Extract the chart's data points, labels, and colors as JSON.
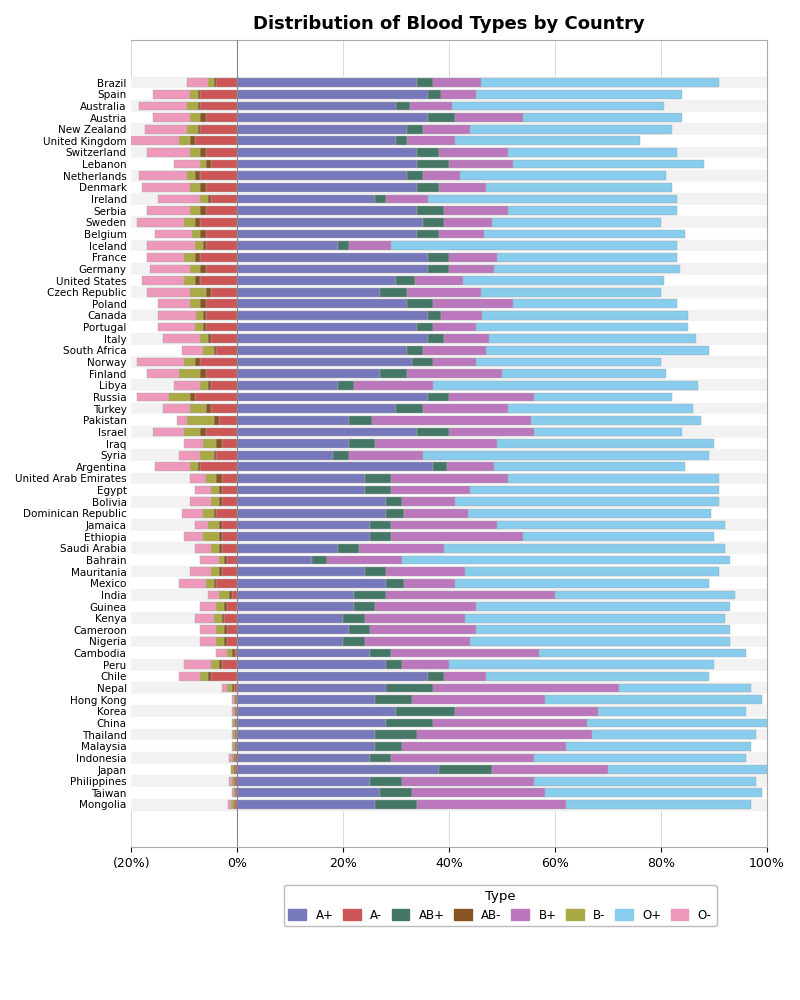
{
  "title": "Distribution of Blood Types by Country",
  "legend_title": "Type",
  "blood_types": [
    "A+",
    "A-",
    "AB+",
    "AB-",
    "B+",
    "B-",
    "O+",
    "O-"
  ],
  "colors": {
    "A+": "#7777BB",
    "A-": "#CC5555",
    "AB+": "#447766",
    "AB-": "#885522",
    "B+": "#BB77BB",
    "B-": "#AAAA44",
    "O+": "#88CCEE",
    "O-": "#EE99BB"
  },
  "countries": [
    "Brazil",
    "Spain",
    "Australia",
    "Austria",
    "New Zealand",
    "United Kingdom",
    "Switzerland",
    "Lebanon",
    "Netherlands",
    "Denmark",
    "Ireland",
    "Serbia",
    "Sweden",
    "Belgium",
    "Iceland",
    "France",
    "Germany",
    "United States",
    "Czech Republic",
    "Poland",
    "Canada",
    "Portugal",
    "Italy",
    "South Africa",
    "Norway",
    "Finland",
    "Libya",
    "Russia",
    "Turkey",
    "Pakistan",
    "Israel",
    "Iraq",
    "Syria",
    "Argentina",
    "United Arab Emirates",
    "Egypt",
    "Bolivia",
    "Dominican Republic",
    "Jamaica",
    "Ethiopia",
    "Saudi Arabia",
    "Bahrain",
    "Mauritania",
    "Mexico",
    "India",
    "Guinea",
    "Kenya",
    "Cameroon",
    "Nigeria",
    "Cambodia",
    "Peru",
    "Chile",
    "Nepal",
    "Hong Kong",
    "Korea",
    "China",
    "Thailand",
    "Malaysia",
    "Indonesia",
    "Japan",
    "Philippines",
    "Taiwan",
    "Mongolia"
  ],
  "data": {
    "Brazil": {
      "A+": 34.0,
      "A-": 4.0,
      "AB+": 3.0,
      "AB-": 0.5,
      "B+": 9.0,
      "B-": 1.0,
      "O+": 45.0,
      "O-": 4.0
    },
    "Spain": {
      "A+": 36.0,
      "A-": 7.0,
      "AB+": 2.5,
      "AB-": 0.5,
      "B+": 6.5,
      "B-": 1.5,
      "O+": 39.0,
      "O-": 7.0
    },
    "Australia": {
      "A+": 30.0,
      "A-": 7.0,
      "AB+": 2.5,
      "AB-": 0.5,
      "B+": 8.0,
      "B-": 2.0,
      "O+": 40.0,
      "O-": 9.0
    },
    "Austria": {
      "A+": 36.0,
      "A-": 6.0,
      "AB+": 5.0,
      "AB-": 1.0,
      "B+": 13.0,
      "B-": 2.0,
      "O+": 30.0,
      "O-": 7.0
    },
    "New Zealand": {
      "A+": 32.0,
      "A-": 7.0,
      "AB+": 3.0,
      "AB-": 0.5,
      "B+": 9.0,
      "B-": 2.0,
      "O+": 38.0,
      "O-": 8.0
    },
    "United Kingdom": {
      "A+": 30.0,
      "A-": 8.0,
      "AB+": 2.0,
      "AB-": 1.0,
      "B+": 9.0,
      "B-": 2.0,
      "O+": 35.0,
      "O-": 13.0
    },
    "Switzerland": {
      "A+": 34.0,
      "A-": 6.0,
      "AB+": 4.0,
      "AB-": 1.0,
      "B+": 13.0,
      "B-": 2.0,
      "O+": 32.0,
      "O-": 8.0
    },
    "Lebanon": {
      "A+": 34.0,
      "A-": 5.0,
      "AB+": 6.0,
      "AB-": 1.0,
      "B+": 12.0,
      "B-": 1.0,
      "O+": 36.0,
      "O-": 5.0
    },
    "Netherlands": {
      "A+": 32.0,
      "A-": 7.0,
      "AB+": 3.0,
      "AB-": 1.0,
      "B+": 7.0,
      "B-": 1.5,
      "O+": 39.0,
      "O-": 9.0
    },
    "Denmark": {
      "A+": 34.0,
      "A-": 6.0,
      "AB+": 4.0,
      "AB-": 1.0,
      "B+": 9.0,
      "B-": 2.0,
      "O+": 35.0,
      "O-": 9.0
    },
    "Ireland": {
      "A+": 26.0,
      "A-": 5.0,
      "AB+": 2.0,
      "AB-": 0.5,
      "B+": 8.0,
      "B-": 1.5,
      "O+": 47.0,
      "O-": 8.0
    },
    "Serbia": {
      "A+": 34.0,
      "A-": 6.0,
      "AB+": 5.0,
      "AB-": 1.0,
      "B+": 12.0,
      "B-": 2.0,
      "O+": 32.0,
      "O-": 8.0
    },
    "Sweden": {
      "A+": 35.0,
      "A-": 7.0,
      "AB+": 4.0,
      "AB-": 1.0,
      "B+": 9.0,
      "B-": 2.0,
      "O+": 32.0,
      "O-": 9.0
    },
    "Belgium": {
      "A+": 34.0,
      "A-": 6.0,
      "AB+": 4.0,
      "AB-": 1.0,
      "B+": 8.5,
      "B-": 1.5,
      "O+": 38.0,
      "O-": 7.0
    },
    "Iceland": {
      "A+": 19.0,
      "A-": 6.0,
      "AB+": 2.0,
      "AB-": 0.5,
      "B+": 8.0,
      "B-": 1.5,
      "O+": 54.0,
      "O-": 9.0
    },
    "France": {
      "A+": 36.0,
      "A-": 7.0,
      "AB+": 4.0,
      "AB-": 1.0,
      "B+": 9.0,
      "B-": 2.0,
      "O+": 34.0,
      "O-": 7.0
    },
    "Germany": {
      "A+": 36.0,
      "A-": 6.0,
      "AB+": 4.0,
      "AB-": 1.0,
      "B+": 8.5,
      "B-": 2.0,
      "O+": 35.0,
      "O-": 7.5
    },
    "United States": {
      "A+": 30.0,
      "A-": 7.0,
      "AB+": 3.5,
      "AB-": 1.0,
      "B+": 9.0,
      "B-": 2.0,
      "O+": 38.0,
      "O-": 8.0
    },
    "Czech Republic": {
      "A+": 27.0,
      "A-": 5.0,
      "AB+": 5.0,
      "AB-": 1.0,
      "B+": 14.0,
      "B-": 3.0,
      "O+": 34.0,
      "O-": 8.0
    },
    "Poland": {
      "A+": 32.0,
      "A-": 6.0,
      "AB+": 5.0,
      "AB-": 1.0,
      "B+": 15.0,
      "B-": 2.0,
      "O+": 31.0,
      "O-": 6.0
    },
    "Canada": {
      "A+": 36.0,
      "A-": 6.0,
      "AB+": 2.5,
      "AB-": 0.5,
      "B+": 7.6,
      "B-": 1.4,
      "O+": 39.0,
      "O-": 7.0
    },
    "Portugal": {
      "A+": 34.0,
      "A-": 6.0,
      "AB+": 3.0,
      "AB-": 0.5,
      "B+": 8.0,
      "B-": 1.5,
      "O+": 40.0,
      "O-": 7.0
    },
    "Italy": {
      "A+": 36.0,
      "A-": 5.0,
      "AB+": 3.0,
      "AB-": 0.5,
      "B+": 8.5,
      "B-": 1.5,
      "O+": 39.0,
      "O-": 7.0
    },
    "South Africa": {
      "A+": 32.0,
      "A-": 4.0,
      "AB+": 3.0,
      "AB-": 0.5,
      "B+": 12.0,
      "B-": 2.0,
      "O+": 42.0,
      "O-": 4.0
    },
    "Norway": {
      "A+": 33.0,
      "A-": 7.0,
      "AB+": 4.0,
      "AB-": 1.0,
      "B+": 8.0,
      "B-": 2.0,
      "O+": 35.0,
      "O-": 9.0
    },
    "Finland": {
      "A+": 27.0,
      "A-": 6.0,
      "AB+": 5.0,
      "AB-": 1.0,
      "B+": 18.0,
      "B-": 4.0,
      "O+": 31.0,
      "O-": 6.0
    },
    "Libya": {
      "A+": 19.0,
      "A-": 5.0,
      "AB+": 3.0,
      "AB-": 0.5,
      "B+": 15.0,
      "B-": 1.5,
      "O+": 50.0,
      "O-": 5.0
    },
    "Russia": {
      "A+": 36.0,
      "A-": 8.0,
      "AB+": 4.0,
      "AB-": 1.0,
      "B+": 16.0,
      "B-": 4.0,
      "O+": 26.0,
      "O-": 6.0
    },
    "Turkey": {
      "A+": 30.0,
      "A-": 5.0,
      "AB+": 5.0,
      "AB-": 1.0,
      "B+": 16.0,
      "B-": 3.0,
      "O+": 35.0,
      "O-": 5.0
    },
    "Pakistan": {
      "A+": 21.0,
      "A-": 3.5,
      "AB+": 4.5,
      "AB-": 1.0,
      "B+": 30.0,
      "B-": 5.0,
      "O+": 32.0,
      "O-": 2.0
    },
    "Israel": {
      "A+": 34.0,
      "A-": 6.0,
      "AB+": 6.0,
      "AB-": 1.0,
      "B+": 16.0,
      "B-": 3.0,
      "O+": 28.0,
      "O-": 6.0
    },
    "Iraq": {
      "A+": 21.0,
      "A-": 3.0,
      "AB+": 5.0,
      "AB-": 1.0,
      "B+": 23.0,
      "B-": 2.5,
      "O+": 41.0,
      "O-": 3.5
    },
    "Syria": {
      "A+": 18.0,
      "A-": 4.0,
      "AB+": 3.0,
      "AB-": 0.5,
      "B+": 14.0,
      "B-": 2.5,
      "O+": 54.0,
      "O-": 4.0
    },
    "Argentina": {
      "A+": 37.0,
      "A-": 7.0,
      "AB+": 2.5,
      "AB-": 0.5,
      "B+": 9.0,
      "B-": 1.5,
      "O+": 36.0,
      "O-": 6.5
    },
    "United Arab Emirates": {
      "A+": 24.0,
      "A-": 3.0,
      "AB+": 5.0,
      "AB-": 1.0,
      "B+": 22.0,
      "B-": 2.0,
      "O+": 40.0,
      "O-": 3.0
    },
    "Egypt": {
      "A+": 24.0,
      "A-": 3.0,
      "AB+": 5.0,
      "AB-": 0.5,
      "B+": 15.0,
      "B-": 1.5,
      "O+": 47.0,
      "O-": 3.0
    },
    "Bolivia": {
      "A+": 28.0,
      "A-": 3.0,
      "AB+": 3.0,
      "AB-": 0.5,
      "B+": 10.0,
      "B-": 1.5,
      "O+": 50.0,
      "O-": 4.0
    },
    "Dominican Republic": {
      "A+": 28.0,
      "A-": 4.0,
      "AB+": 3.5,
      "AB-": 0.5,
      "B+": 12.0,
      "B-": 2.0,
      "O+": 46.0,
      "O-": 4.0
    },
    "Jamaica": {
      "A+": 25.0,
      "A-": 3.0,
      "AB+": 4.0,
      "AB-": 0.5,
      "B+": 20.0,
      "B-": 2.0,
      "O+": 43.0,
      "O-": 2.5
    },
    "Ethiopia": {
      "A+": 25.0,
      "A-": 3.0,
      "AB+": 4.0,
      "AB-": 0.5,
      "B+": 25.0,
      "B-": 3.0,
      "O+": 36.0,
      "O-": 3.5
    },
    "Saudi Arabia": {
      "A+": 19.0,
      "A-": 3.0,
      "AB+": 4.0,
      "AB-": 0.5,
      "B+": 16.0,
      "B-": 1.5,
      "O+": 53.0,
      "O-": 3.0
    },
    "Bahrain": {
      "A+": 14.0,
      "A-": 2.0,
      "AB+": 3.0,
      "AB-": 0.5,
      "B+": 14.0,
      "B-": 1.0,
      "O+": 62.0,
      "O-": 3.5
    },
    "Mauritania": {
      "A+": 24.0,
      "A-": 3.0,
      "AB+": 4.0,
      "AB-": 0.5,
      "B+": 15.0,
      "B-": 1.5,
      "O+": 48.0,
      "O-": 4.0
    },
    "Mexico": {
      "A+": 28.0,
      "A-": 4.0,
      "AB+": 3.5,
      "AB-": 0.5,
      "B+": 9.5,
      "B-": 1.5,
      "O+": 48.0,
      "O-": 5.0
    },
    "India": {
      "A+": 22.0,
      "A-": 1.0,
      "AB+": 6.0,
      "AB-": 0.5,
      "B+": 32.0,
      "B-": 2.0,
      "O+": 34.0,
      "O-": 2.0
    },
    "Guinea": {
      "A+": 22.0,
      "A-": 2.0,
      "AB+": 4.0,
      "AB-": 0.5,
      "B+": 19.0,
      "B-": 1.5,
      "O+": 48.0,
      "O-": 3.0
    },
    "Kenya": {
      "A+": 20.0,
      "A-": 2.5,
      "AB+": 4.0,
      "AB-": 0.5,
      "B+": 19.0,
      "B-": 1.5,
      "O+": 49.0,
      "O-": 3.5
    },
    "Cameroon": {
      "A+": 21.0,
      "A-": 2.0,
      "AB+": 4.0,
      "AB-": 0.5,
      "B+": 20.0,
      "B-": 1.5,
      "O+": 48.0,
      "O-": 3.0
    },
    "Nigeria": {
      "A+": 20.0,
      "A-": 2.0,
      "AB+": 4.0,
      "AB-": 0.5,
      "B+": 20.0,
      "B-": 1.5,
      "O+": 49.0,
      "O-": 3.0
    },
    "Cambodia": {
      "A+": 25.0,
      "A-": 0.5,
      "AB+": 4.0,
      "AB-": 0.5,
      "B+": 28.0,
      "B-": 1.0,
      "O+": 39.0,
      "O-": 2.0
    },
    "Peru": {
      "A+": 28.0,
      "A-": 3.0,
      "AB+": 3.0,
      "AB-": 0.5,
      "B+": 9.0,
      "B-": 1.5,
      "O+": 50.0,
      "O-": 5.0
    },
    "Chile": {
      "A+": 36.0,
      "A-": 5.0,
      "AB+": 3.0,
      "AB-": 0.5,
      "B+": 8.0,
      "B-": 1.5,
      "O+": 42.0,
      "O-": 4.0
    },
    "Nepal": {
      "A+": 28.0,
      "A-": 0.7,
      "AB+": 9.0,
      "AB-": 0.3,
      "B+": 35.0,
      "B-": 1.0,
      "O+": 25.0,
      "O-": 1.0
    },
    "Hong Kong": {
      "A+": 26.0,
      "A-": 0.3,
      "AB+": 7.0,
      "AB-": 0.1,
      "B+": 25.0,
      "B-": 0.3,
      "O+": 41.0,
      "O-": 0.3
    },
    "Korea": {
      "A+": 30.0,
      "A-": 0.3,
      "AB+": 11.0,
      "AB-": 0.1,
      "B+": 27.0,
      "B-": 0.3,
      "O+": 28.0,
      "O-": 0.3
    },
    "China": {
      "A+": 28.0,
      "A-": 0.3,
      "AB+": 9.0,
      "AB-": 0.1,
      "B+": 29.0,
      "B-": 0.5,
      "O+": 34.0,
      "O-": 0.1
    },
    "Thailand": {
      "A+": 26.0,
      "A-": 0.3,
      "AB+": 8.0,
      "AB-": 0.1,
      "B+": 33.0,
      "B-": 0.5,
      "O+": 31.0,
      "O-": 0.1
    },
    "Malaysia": {
      "A+": 26.0,
      "A-": 0.3,
      "AB+": 5.0,
      "AB-": 0.1,
      "B+": 31.0,
      "B-": 0.5,
      "O+": 35.0,
      "O-": 0.1
    },
    "Indonesia": {
      "A+": 25.0,
      "A-": 0.5,
      "AB+": 4.0,
      "AB-": 0.1,
      "B+": 27.0,
      "B-": 0.5,
      "O+": 40.0,
      "O-": 0.5
    },
    "Japan": {
      "A+": 38.0,
      "A-": 0.5,
      "AB+": 10.0,
      "AB-": 0.2,
      "B+": 22.0,
      "B-": 0.5,
      "O+": 30.0,
      "O-": 0.1
    },
    "Philippines": {
      "A+": 25.0,
      "A-": 0.5,
      "AB+": 6.0,
      "AB-": 0.1,
      "B+": 25.0,
      "B-": 0.5,
      "O+": 42.0,
      "O-": 0.5
    },
    "Taiwan": {
      "A+": 27.0,
      "A-": 0.3,
      "AB+": 6.0,
      "AB-": 0.1,
      "B+": 25.0,
      "B-": 0.3,
      "O+": 41.0,
      "O-": 0.3
    },
    "Mongolia": {
      "A+": 26.0,
      "A-": 0.5,
      "AB+": 8.0,
      "AB-": 0.2,
      "B+": 28.0,
      "B-": 0.5,
      "O+": 35.0,
      "O-": 0.5
    }
  },
  "xlim": [
    -20,
    100
  ],
  "xticks": [
    -20,
    0,
    20,
    40,
    60,
    80,
    100
  ],
  "xticklabels": [
    "(20%)",
    "0%",
    "20%",
    "40%",
    "60%",
    "80%",
    "100%"
  ],
  "figsize": [
    8.0,
    10.0
  ]
}
